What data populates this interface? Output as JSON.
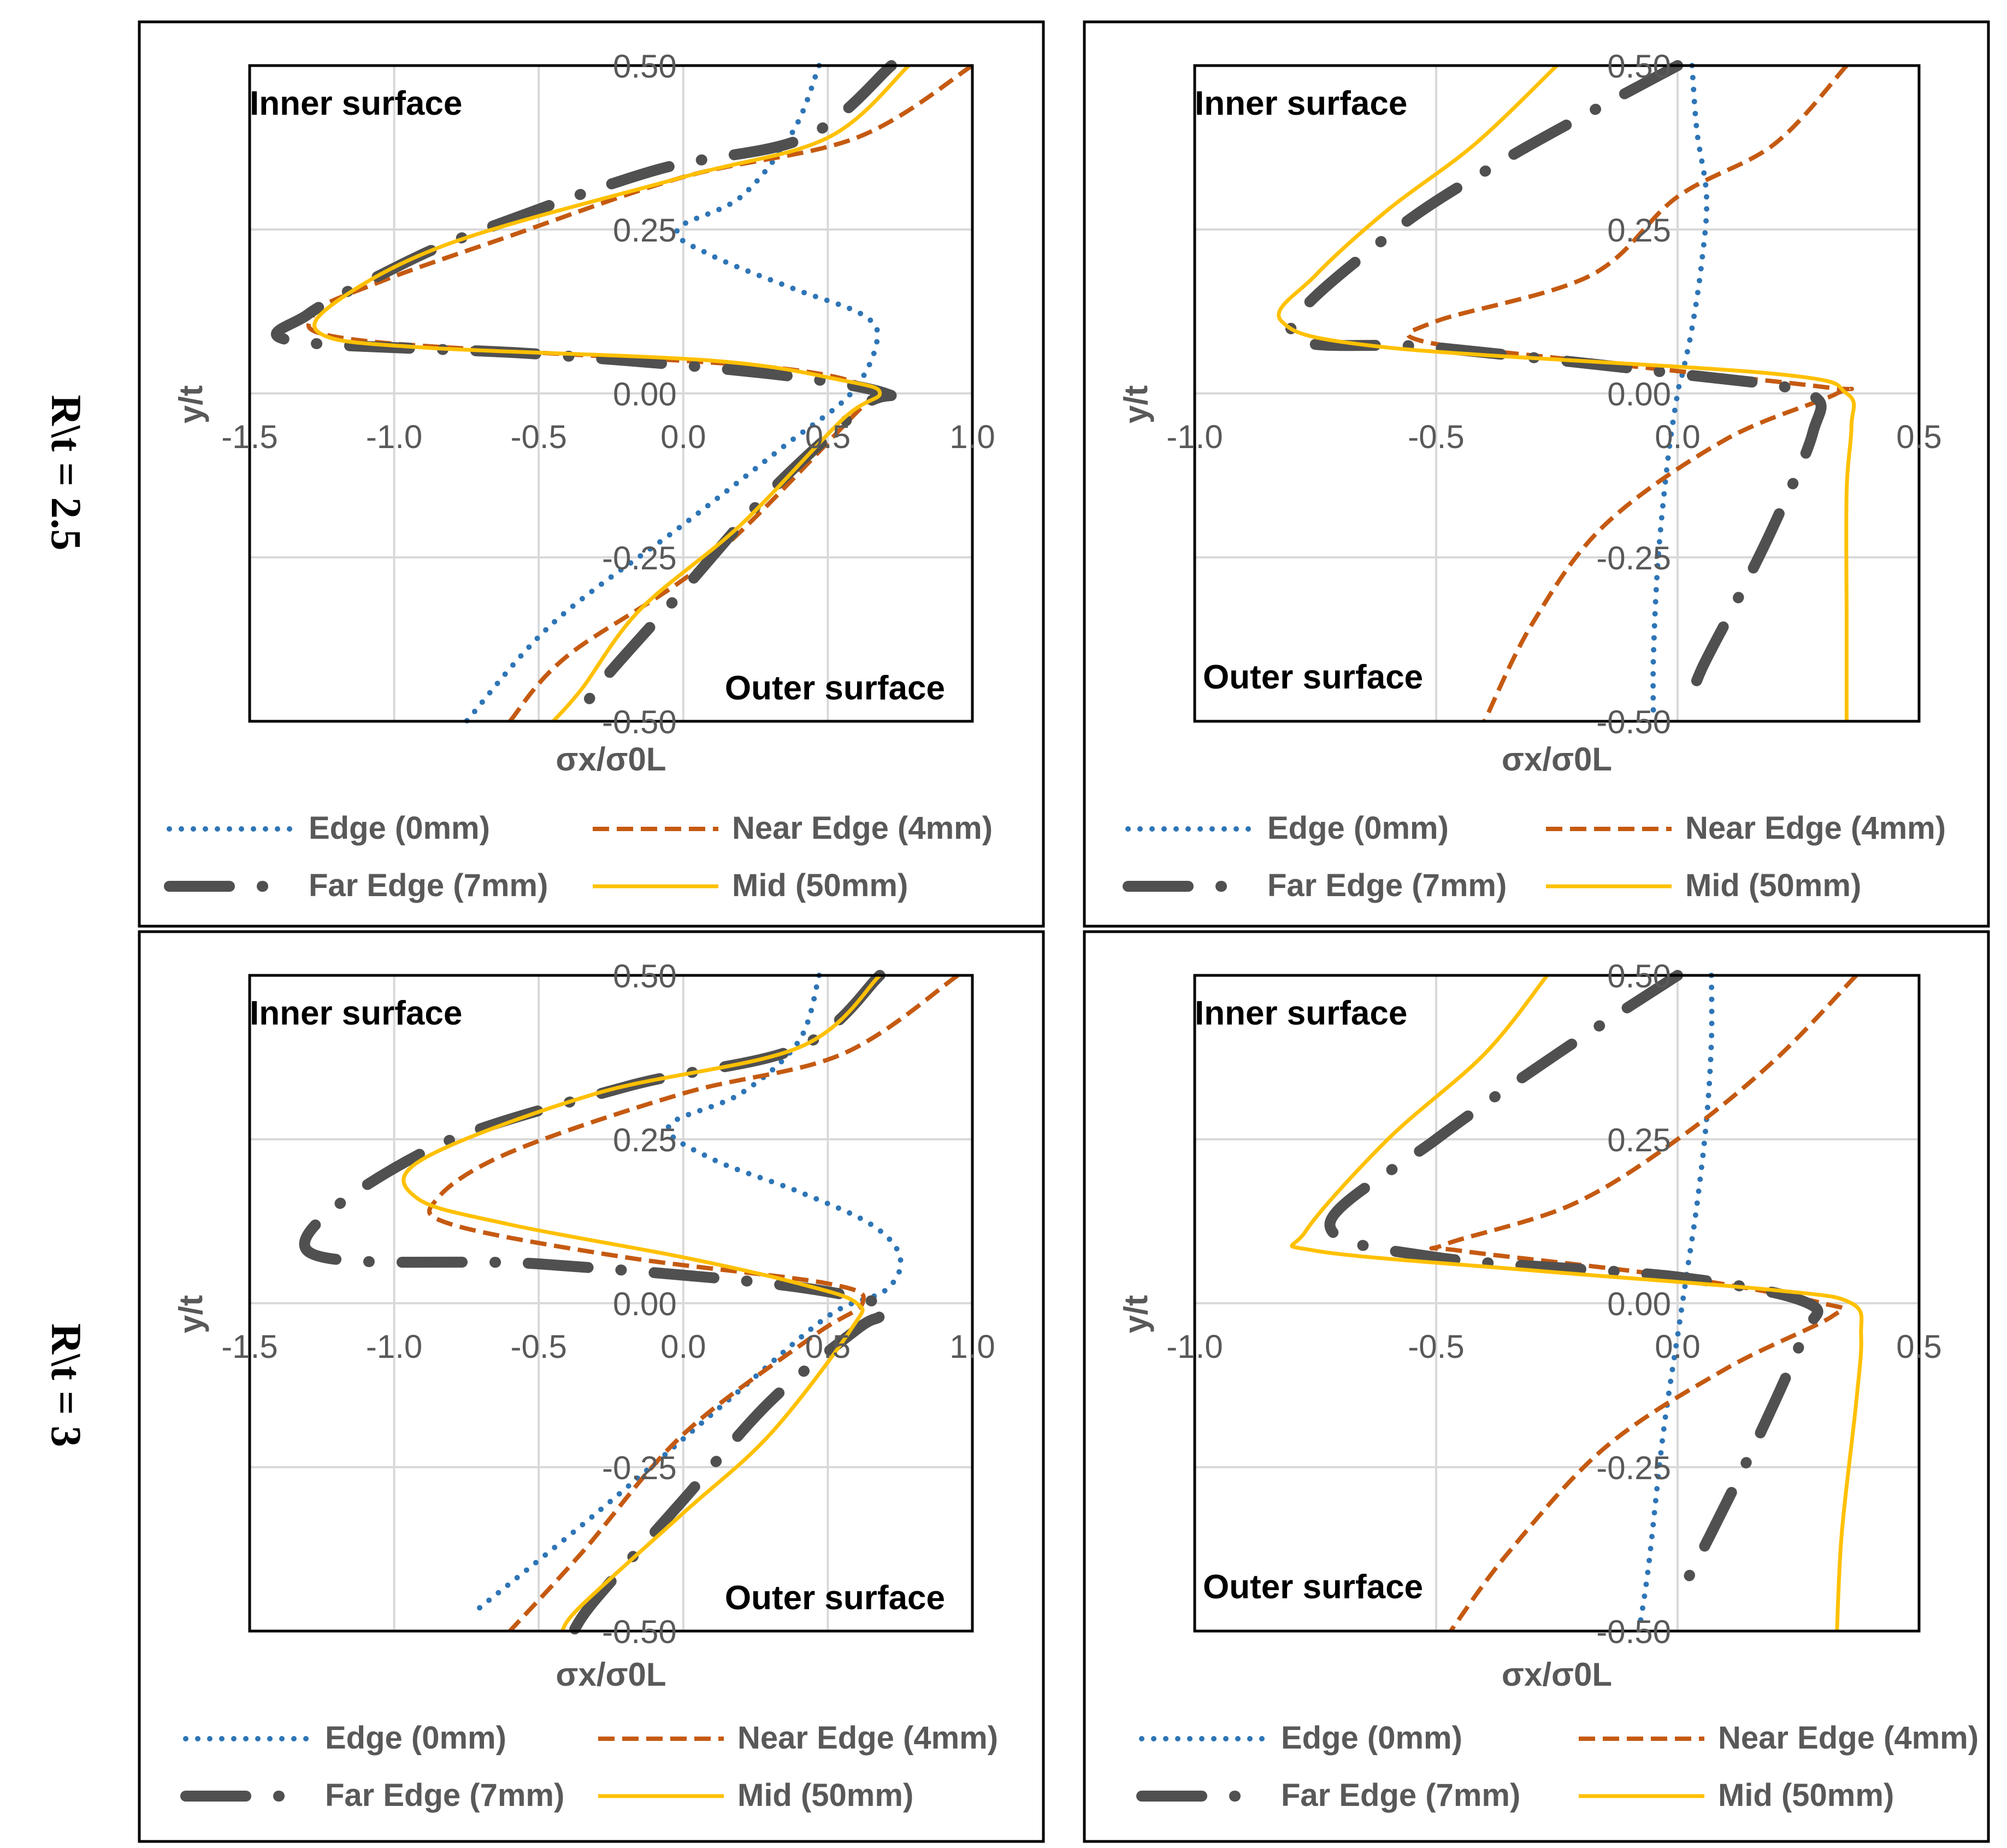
{
  "row_labels": [
    "R\\t = 2.5",
    "R\\t = 3"
  ],
  "legend": {
    "edge": "Edge (0mm)",
    "near": "Near Edge (4mm)",
    "far": "Far Edge (7mm)",
    "mid": "Mid (50mm)"
  },
  "colors": {
    "edge": "#2e75b6",
    "near": "#c55a11",
    "far": "#505050",
    "mid": "#ffc000"
  },
  "chart_data": [
    {
      "type": "line",
      "row": "R\\t = 2.5",
      "xlabel": "σx/σ0L",
      "ylabel": "y/t",
      "xlim": [
        -1.5,
        1.0
      ],
      "ylim": [
        -0.5,
        0.5
      ],
      "xticks": [
        -1.5,
        -1.0,
        -0.5,
        0.0,
        0.5,
        1.0
      ],
      "xtick_labels": [
        "-1.5",
        "-1.0",
        "-0.5",
        "0.0",
        "0.5",
        "1.0"
      ],
      "yticks": [
        0.5,
        0.25,
        0.0,
        -0.25,
        -0.5
      ],
      "ytick_labels": [
        "0.50",
        "0.25",
        "0.00",
        "-0.25",
        "-0.50"
      ],
      "annotations": {
        "inner": "Inner surface",
        "outer": "Outer surface",
        "inner_pos": "top-left",
        "outer_pos": "bottom-right"
      },
      "series": [
        {
          "key": "edge",
          "name": "Edge (0mm)",
          "x": [
            0.47,
            0.38,
            0.2,
            -0.02,
            0.1,
            0.38,
            0.62,
            0.67,
            0.58,
            0.35,
            0.0,
            -0.45,
            -0.75
          ],
          "y": [
            0.5,
            0.4,
            0.3,
            0.25,
            0.21,
            0.16,
            0.12,
            0.08,
            0.0,
            -0.08,
            -0.2,
            -0.35,
            -0.5
          ]
        },
        {
          "key": "near",
          "name": "Near Edge (4mm)",
          "x": [
            1.0,
            0.6,
            0.0,
            -0.6,
            -1.05,
            -1.28,
            -1.1,
            0.3,
            0.68,
            0.62,
            0.1,
            -0.4,
            -0.6
          ],
          "y": [
            0.5,
            0.39,
            0.33,
            0.24,
            0.17,
            0.12,
            0.08,
            0.04,
            0.0,
            -0.02,
            -0.25,
            -0.4,
            -0.5
          ]
        },
        {
          "key": "far",
          "name": "Far Edge (7mm)",
          "x": [
            0.72,
            0.42,
            -0.1,
            -0.75,
            -1.05,
            -1.3,
            -1.35,
            -0.5,
            0.3,
            0.7,
            0.62,
            0.3,
            0.0,
            -0.3,
            -0.35
          ],
          "y": [
            0.5,
            0.39,
            0.34,
            0.24,
            0.18,
            0.12,
            0.08,
            0.06,
            0.03,
            0.0,
            -0.02,
            -0.15,
            -0.3,
            -0.45,
            -0.5
          ]
        },
        {
          "key": "mid",
          "name": "Mid (50mm)",
          "x": [
            0.78,
            0.5,
            0.0,
            -0.8,
            -1.2,
            -1.25,
            -0.9,
            0.1,
            0.55,
            0.68,
            0.55,
            0.2,
            -0.15,
            -0.35,
            -0.45
          ],
          "y": [
            0.5,
            0.39,
            0.33,
            0.23,
            0.14,
            0.09,
            0.07,
            0.05,
            0.02,
            0.0,
            -0.04,
            -0.2,
            -0.33,
            -0.45,
            -0.5
          ]
        }
      ]
    },
    {
      "type": "line",
      "row": "R\\t = 2.5",
      "xlabel": "σx/σ0L",
      "ylabel": "y/t",
      "xlim": [
        -1.0,
        0.5
      ],
      "ylim": [
        -0.5,
        0.5
      ],
      "xticks": [
        -1.0,
        -0.5,
        0.0,
        0.5
      ],
      "xtick_labels": [
        "-1.0",
        "-0.5",
        "0.0",
        "0.5"
      ],
      "yticks": [
        0.5,
        0.25,
        0.0,
        -0.25,
        -0.5
      ],
      "ytick_labels": [
        "0.50",
        "0.25",
        "0.00",
        "-0.25",
        "-0.50"
      ],
      "annotations": {
        "inner": "Inner surface",
        "outer": "Outer surface",
        "inner_pos": "top-left",
        "outer_pos": "bottom-left"
      },
      "series": [
        {
          "key": "edge",
          "name": "Edge (0mm)",
          "x": [
            0.03,
            0.04,
            0.06,
            0.05,
            0.03,
            0.01,
            0.0,
            -0.02,
            -0.04,
            -0.05,
            -0.05
          ],
          "y": [
            0.5,
            0.4,
            0.3,
            0.2,
            0.1,
            0.03,
            0.0,
            -0.1,
            -0.25,
            -0.4,
            -0.5
          ]
        },
        {
          "key": "near",
          "name": "Near Edge (4mm)",
          "x": [
            0.35,
            0.2,
            0.0,
            -0.18,
            -0.5,
            -0.53,
            -0.2,
            0.3,
            0.33,
            0.1,
            -0.15,
            -0.3,
            -0.4
          ],
          "y": [
            0.5,
            0.38,
            0.3,
            0.18,
            0.11,
            0.08,
            0.05,
            0.01,
            0.0,
            -0.07,
            -0.2,
            -0.35,
            -0.5
          ]
        },
        {
          "key": "far",
          "name": "Far Edge (7mm)",
          "x": [
            0.0,
            -0.35,
            -0.6,
            -0.8,
            -0.5,
            0.0,
            0.27,
            0.28,
            0.2,
            0.12,
            0.05,
            0.02
          ],
          "y": [
            0.5,
            0.36,
            0.24,
            0.09,
            0.07,
            0.03,
            0.0,
            -0.06,
            -0.2,
            -0.32,
            -0.42,
            -0.48
          ]
        },
        {
          "key": "mid",
          "name": "Mid (50mm)",
          "x": [
            -0.25,
            -0.42,
            -0.6,
            -0.75,
            -0.82,
            -0.6,
            0.2,
            0.35,
            0.36,
            0.35,
            0.35,
            0.35
          ],
          "y": [
            0.5,
            0.38,
            0.28,
            0.18,
            0.11,
            0.07,
            0.03,
            0.0,
            -0.05,
            -0.15,
            -0.35,
            -0.5
          ]
        }
      ]
    },
    {
      "type": "line",
      "row": "R\\t = 3",
      "xlabel": "σx/σ0L",
      "ylabel": "y/t",
      "xlim": [
        -1.5,
        1.0
      ],
      "ylim": [
        -0.5,
        0.5
      ],
      "xticks": [
        -1.5,
        -1.0,
        -0.5,
        0.0,
        0.5,
        1.0
      ],
      "xtick_labels": [
        "-1.5",
        "-1.0",
        "-0.5",
        "0.0",
        "0.5",
        "1.0"
      ],
      "yticks": [
        0.5,
        0.25,
        0.0,
        -0.25,
        -0.5
      ],
      "ytick_labels": [
        "0.50",
        "0.25",
        "0.00",
        "-0.25",
        "-0.50"
      ],
      "annotations": {
        "inner": "Inner surface",
        "outer": "Outer surface",
        "inner_pos": "top-left",
        "outer_pos": "bottom-right"
      },
      "series": [
        {
          "key": "edge",
          "name": "Edge (0mm)",
          "x": [
            0.47,
            0.4,
            0.2,
            -0.05,
            0.1,
            0.4,
            0.65,
            0.75,
            0.7,
            0.5,
            0.15,
            -0.3,
            -0.72
          ],
          "y": [
            0.5,
            0.4,
            0.32,
            0.27,
            0.22,
            0.17,
            0.12,
            0.07,
            0.02,
            -0.02,
            -0.15,
            -0.32,
            -0.47
          ]
        },
        {
          "key": "near",
          "name": "Near Edge (4mm)",
          "x": [
            0.95,
            0.55,
            0.0,
            -0.6,
            -0.85,
            -0.8,
            -0.2,
            0.5,
            0.62,
            0.45,
            0.0,
            -0.35,
            -0.6
          ],
          "y": [
            0.5,
            0.38,
            0.32,
            0.23,
            0.16,
            0.12,
            0.07,
            0.03,
            0.0,
            -0.05,
            -0.2,
            -0.38,
            -0.5
          ]
        },
        {
          "key": "far",
          "name": "Far Edge (7mm)",
          "x": [
            0.68,
            0.4,
            -0.2,
            -0.9,
            -1.3,
            -0.5,
            0.3,
            0.68,
            0.68,
            0.6,
            0.3,
            0.0,
            -0.3,
            -0.38
          ],
          "y": [
            0.5,
            0.39,
            0.33,
            0.23,
            0.08,
            0.06,
            0.03,
            0.0,
            -0.02,
            -0.04,
            -0.15,
            -0.3,
            -0.45,
            -0.5
          ]
        },
        {
          "key": "mid",
          "name": "Mid (50mm)",
          "x": [
            0.68,
            0.4,
            -0.3,
            -0.9,
            -0.92,
            -0.6,
            0.0,
            0.4,
            0.6,
            0.58,
            0.3,
            0.0,
            -0.35,
            -0.42
          ],
          "y": [
            0.5,
            0.39,
            0.32,
            0.22,
            0.16,
            0.12,
            0.07,
            0.03,
            0.0,
            -0.04,
            -0.2,
            -0.32,
            -0.46,
            -0.5
          ]
        }
      ]
    },
    {
      "type": "line",
      "row": "R\\t = 3",
      "xlabel": "σx/σ0L",
      "ylabel": "y/t",
      "xlim": [
        -1.0,
        0.5
      ],
      "ylim": [
        -0.5,
        0.5
      ],
      "xticks": [
        -1.0,
        -0.5,
        0.0,
        0.5
      ],
      "xtick_labels": [
        "-1.0",
        "-0.5",
        "0.0",
        "0.5"
      ],
      "yticks": [
        0.5,
        0.25,
        0.0,
        -0.25,
        -0.5
      ],
      "ytick_labels": [
        "0.50",
        "0.25",
        "0.00",
        "-0.25",
        "-0.50"
      ],
      "annotations": {
        "inner": "Inner surface",
        "outer": "Outer surface",
        "inner_pos": "top-left",
        "outer_pos": "bottom-left"
      },
      "series": [
        {
          "key": "edge",
          "name": "Edge (0mm)",
          "x": [
            0.07,
            0.07,
            0.06,
            0.04,
            0.02,
            0.01,
            0.0,
            -0.03,
            -0.06,
            -0.08
          ],
          "y": [
            0.5,
            0.4,
            0.28,
            0.15,
            0.05,
            0.0,
            -0.05,
            -0.2,
            -0.4,
            -0.5
          ]
        },
        {
          "key": "near",
          "name": "Near Edge (4mm)",
          "x": [
            0.37,
            0.2,
            0.0,
            -0.22,
            -0.48,
            -0.45,
            0.0,
            0.3,
            0.32,
            0.1,
            -0.15,
            -0.35,
            -0.47
          ],
          "y": [
            0.5,
            0.37,
            0.25,
            0.15,
            0.09,
            0.08,
            0.04,
            0.0,
            -0.02,
            -0.1,
            -0.22,
            -0.38,
            -0.5
          ]
        },
        {
          "key": "far",
          "name": "Far Edge (7mm)",
          "x": [
            0.0,
            -0.25,
            -0.5,
            -0.72,
            -0.5,
            0.0,
            0.27,
            0.26,
            0.17,
            0.07,
            0.0
          ],
          "y": [
            0.5,
            0.38,
            0.25,
            0.12,
            0.07,
            0.04,
            0.0,
            -0.05,
            -0.2,
            -0.35,
            -0.45
          ]
        },
        {
          "key": "mid",
          "name": "Mid (50mm)",
          "x": [
            -0.27,
            -0.4,
            -0.6,
            -0.77,
            -0.75,
            -0.3,
            0.2,
            0.36,
            0.38,
            0.37,
            0.34,
            0.33
          ],
          "y": [
            0.5,
            0.38,
            0.25,
            0.11,
            0.08,
            0.05,
            0.02,
            0.0,
            -0.05,
            -0.15,
            -0.35,
            -0.5
          ]
        }
      ]
    }
  ]
}
